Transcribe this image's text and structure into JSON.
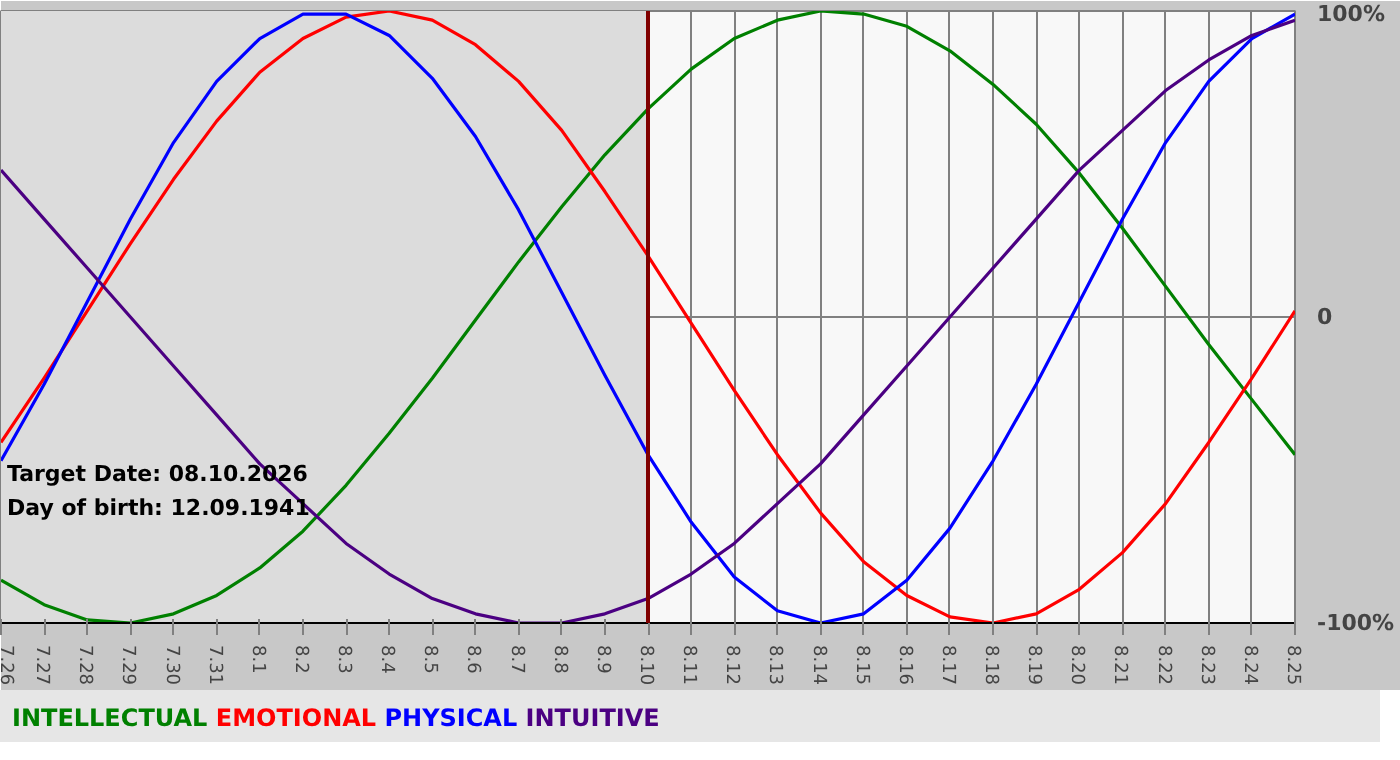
{
  "chart_data": {
    "type": "line",
    "categories": [
      "7.26",
      "7.27",
      "7.28",
      "7.29",
      "7.30",
      "7.31",
      "8.1",
      "8.2",
      "8.3",
      "8.4",
      "8.5",
      "8.6",
      "8.7",
      "8.8",
      "8.9",
      "8.10",
      "8.11",
      "8.12",
      "8.13",
      "8.14",
      "8.15",
      "8.16",
      "8.17",
      "8.18",
      "8.19",
      "8.20",
      "8.21",
      "8.22",
      "8.23",
      "8.24",
      "8.25"
    ],
    "series": [
      {
        "name": "INTELLECTUAL",
        "color": "#008000",
        "values": [
          -86,
          -94,
          -99,
          -100,
          -97,
          -91,
          -82,
          -70,
          -55,
          -38,
          -20,
          -1,
          18,
          36,
          53,
          68,
          81,
          91,
          97,
          100,
          99,
          95,
          87,
          76,
          63,
          47,
          29,
          10,
          -9,
          -27,
          -45
        ]
      },
      {
        "name": "EMOTIONAL",
        "color": "#ff0000",
        "values": [
          -41,
          -20,
          2,
          24,
          45,
          64,
          80,
          91,
          98,
          100,
          97,
          89,
          77,
          61,
          41,
          20,
          -2,
          -24,
          -45,
          -64,
          -80,
          -91,
          -98,
          -100,
          -97,
          -89,
          -77,
          -61,
          -41,
          -20,
          2
        ]
      },
      {
        "name": "PHYSICAL",
        "color": "#0000ff",
        "values": [
          -47,
          -22,
          5,
          32,
          57,
          77,
          91,
          99,
          99,
          92,
          78,
          59,
          35,
          8,
          -19,
          -45,
          -67,
          -85,
          -96,
          -100,
          -97,
          -86,
          -69,
          -47,
          -22,
          5,
          32,
          57,
          77,
          91,
          99
        ]
      },
      {
        "name": "INTUITIVE",
        "color": "#4b0082",
        "values": [
          48,
          32,
          16,
          0,
          -16,
          -32,
          -48,
          -61,
          -74,
          -84,
          -92,
          -97,
          -100,
          -100,
          -97,
          -92,
          -84,
          -74,
          -61,
          -48,
          -32,
          -16,
          0,
          16,
          32,
          48,
          61,
          74,
          84,
          92,
          97
        ]
      }
    ],
    "ylim": [
      -100,
      100
    ],
    "yticks": [
      {
        "value": 100,
        "label": "100%"
      },
      0,
      {
        "value": -100,
        "label": "-100%"
      }
    ],
    "ref_lines": [
      {
        "axis": "x",
        "value": "8.10",
        "color": "#800000"
      }
    ],
    "bands": [
      {
        "axis": "x",
        "from": "7.26",
        "to": "8.10",
        "color": "#dcdcdc"
      }
    ],
    "annotations": [
      "Target Date: 08.10.2026",
      "Day of birth: 12.09.1941"
    ],
    "grid": true,
    "legend": "bottom",
    "line_style": "solid",
    "marker": "none"
  }
}
